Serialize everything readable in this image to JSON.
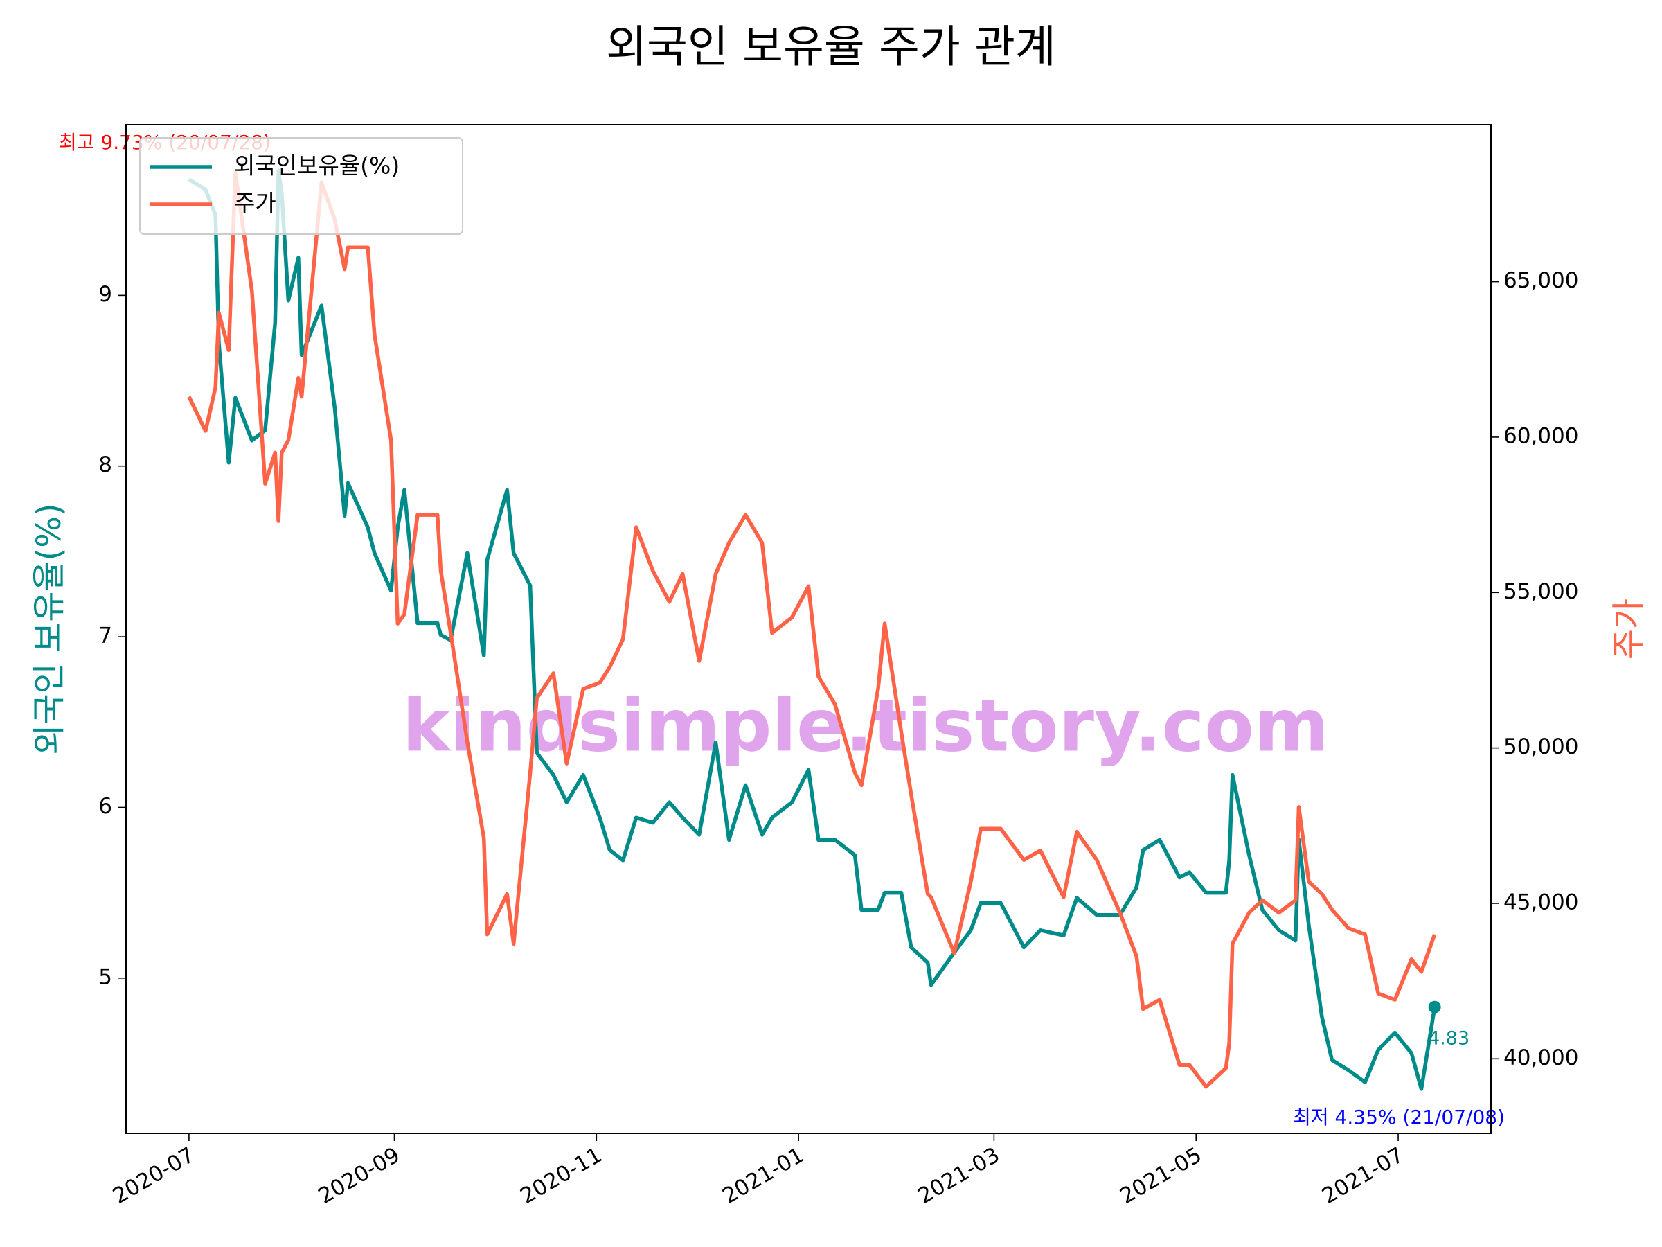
{
  "chart_data": {
    "type": "line",
    "title": "외국인 보유율 주가 관계",
    "ylabel": "외국인 보유율(%)",
    "y2label": "주가",
    "x": [
      "2020-07-01",
      "2020-07-06",
      "2020-07-09",
      "2020-07-10",
      "2020-07-13",
      "2020-07-15",
      "2020-07-20",
      "2020-07-24",
      "2020-07-27",
      "2020-07-28",
      "2020-07-29",
      "2020-07-31",
      "2020-08-03",
      "2020-08-04",
      "2020-08-10",
      "2020-08-14",
      "2020-08-17",
      "2020-08-18",
      "2020-08-24",
      "2020-08-26",
      "2020-08-31",
      "2020-09-02",
      "2020-09-04",
      "2020-09-08",
      "2020-09-14",
      "2020-09-15",
      "2020-09-18",
      "2020-09-23",
      "2020-09-28",
      "2020-09-29",
      "2020-10-05",
      "2020-10-07",
      "2020-10-12",
      "2020-10-14",
      "2020-10-19",
      "2020-10-23",
      "2020-10-28",
      "2020-11-02",
      "2020-11-05",
      "2020-11-09",
      "2020-11-13",
      "2020-11-18",
      "2020-11-23",
      "2020-11-27",
      "2020-12-02",
      "2020-12-07",
      "2020-12-11",
      "2020-12-16",
      "2020-12-21",
      "2020-12-24",
      "2020-12-30",
      "2021-01-04",
      "2021-01-07",
      "2021-01-12",
      "2021-01-18",
      "2021-01-20",
      "2021-01-25",
      "2021-01-27",
      "2021-02-01",
      "2021-02-04",
      "2021-02-09",
      "2021-02-10",
      "2021-02-17",
      "2021-02-22",
      "2021-02-25",
      "2021-03-03",
      "2021-03-10",
      "2021-03-15",
      "2021-03-22",
      "2021-03-26",
      "2021-04-01",
      "2021-04-08",
      "2021-04-13",
      "2021-04-15",
      "2021-04-20",
      "2021-04-26",
      "2021-04-29",
      "2021-05-04",
      "2021-05-10",
      "2021-05-11",
      "2021-05-12",
      "2021-05-17",
      "2021-05-21",
      "2021-05-26",
      "2021-05-31",
      "2021-06-01",
      "2021-06-04",
      "2021-06-08",
      "2021-06-11",
      "2021-06-16",
      "2021-06-21",
      "2021-06-25",
      "2021-06-30",
      "2021-07-05",
      "2021-07-08",
      "2021-07-12"
    ],
    "series": [
      {
        "name": "외국인보유율(%)",
        "color": "#008b8b",
        "values": [
          9.68,
          9.62,
          9.47,
          8.72,
          8.02,
          8.4,
          8.15,
          8.21,
          8.84,
          9.73,
          9.6,
          8.97,
          9.22,
          8.65,
          8.94,
          8.34,
          7.71,
          7.9,
          7.64,
          7.49,
          7.27,
          7.64,
          7.86,
          7.08,
          7.08,
          7.01,
          6.98,
          7.49,
          6.89,
          7.45,
          7.86,
          7.49,
          7.3,
          6.32,
          6.19,
          6.03,
          6.19,
          5.94,
          5.75,
          5.69,
          5.94,
          5.91,
          6.03,
          5.94,
          5.84,
          6.38,
          5.81,
          6.13,
          5.84,
          5.94,
          6.03,
          6.22,
          5.81,
          5.81,
          5.72,
          5.4,
          5.4,
          5.5,
          5.5,
          5.18,
          5.09,
          4.96,
          5.15,
          5.28,
          5.44,
          5.44,
          5.18,
          5.28,
          5.25,
          5.47,
          5.37,
          5.37,
          5.53,
          5.75,
          5.81,
          5.59,
          5.62,
          5.5,
          5.5,
          5.69,
          6.19,
          5.72,
          5.4,
          5.28,
          5.22,
          5.81,
          5.31,
          4.77,
          4.52,
          4.46,
          4.39,
          4.58,
          4.68,
          4.56,
          4.35,
          4.83
        ]
      },
      {
        "name": "주가",
        "color": "#ff6347",
        "axis": "y2",
        "values": [
          61300,
          60200,
          61600,
          64000,
          62800,
          68500,
          64700,
          58500,
          59500,
          57300,
          59500,
          59900,
          61900,
          61300,
          68200,
          67000,
          65400,
          66100,
          66100,
          63300,
          59900,
          54000,
          54300,
          57500,
          57500,
          55700,
          53700,
          50200,
          47100,
          44000,
          45300,
          43700,
          49200,
          51600,
          52400,
          49500,
          51900,
          52100,
          52600,
          53500,
          57100,
          55700,
          54700,
          55600,
          52800,
          55600,
          56600,
          57500,
          56600,
          53700,
          54200,
          55200,
          52300,
          51400,
          49200,
          48800,
          51900,
          54000,
          50500,
          48500,
          45300,
          45200,
          43400,
          45700,
          47400,
          47400,
          46400,
          46700,
          45200,
          47300,
          46400,
          44700,
          43300,
          41600,
          41900,
          39800,
          39800,
          39100,
          39700,
          40500,
          43700,
          44700,
          45100,
          44700,
          45100,
          48100,
          45700,
          45300,
          44800,
          44200,
          44000,
          42100,
          41900,
          43200,
          42800,
          44000
        ]
      }
    ],
    "xlim": [
      "2020-06-12",
      "2021-07-29"
    ],
    "xticks": [
      "2020-07",
      "2020-09",
      "2020-11",
      "2021-01",
      "2021-03",
      "2021-05",
      "2021-07"
    ],
    "ylim": [
      4.09,
      10.0
    ],
    "yticks": [
      5,
      6,
      7,
      8,
      9
    ],
    "y2lim": [
      37600,
      70050
    ],
    "y2ticks": [
      {
        "value": 40000,
        "label": "40,000"
      },
      {
        "value": 45000,
        "label": "45,000"
      },
      {
        "value": 50000,
        "label": "50,000"
      },
      {
        "value": 55000,
        "label": "55,000"
      },
      {
        "value": 60000,
        "label": "60,000"
      },
      {
        "value": 65000,
        "label": "65,000"
      }
    ],
    "legend": "upper left",
    "annotations": [
      "최고 9.73% (20/07/28)",
      "최저 4.35% (21/07/08)",
      "4.83"
    ],
    "watermark": "kindsimple.tistory.com"
  }
}
